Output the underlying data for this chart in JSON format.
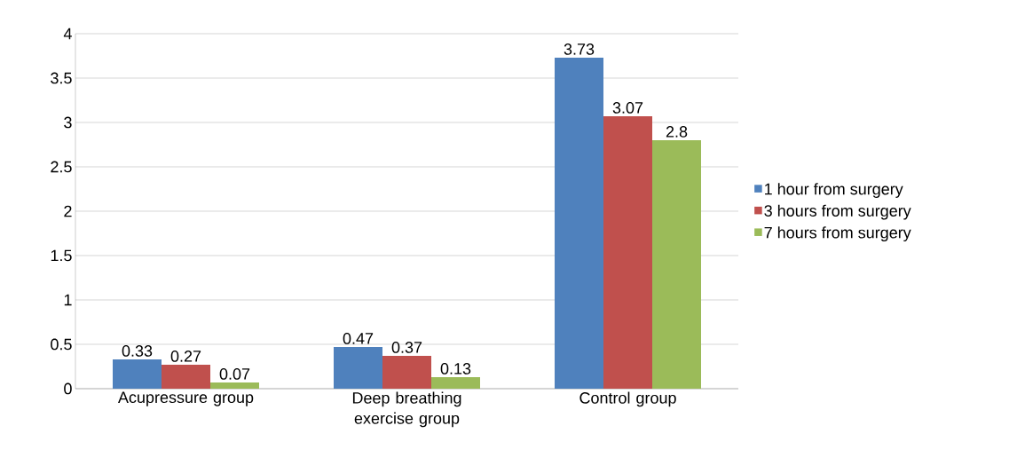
{
  "chart_data": {
    "type": "bar",
    "categories": [
      "Acupressure group",
      "Deep breathing exercise group",
      "Control group"
    ],
    "series": [
      {
        "name": "1 hour from surgery",
        "color": "#4f81bd",
        "values": [
          0.33,
          0.47,
          3.73
        ]
      },
      {
        "name": "3 hours from surgery",
        "color": "#c0504d",
        "values": [
          0.27,
          0.37,
          3.07
        ]
      },
      {
        "name": "7 hours from surgery",
        "color": "#9bbb59",
        "values": [
          0.07,
          0.13,
          2.8
        ]
      }
    ],
    "ylim": [
      0,
      4
    ],
    "yticks": [
      0,
      0.5,
      1,
      1.5,
      2,
      2.5,
      3,
      3.5,
      4
    ],
    "grid": "y",
    "legend": "right",
    "data_labels": true
  }
}
